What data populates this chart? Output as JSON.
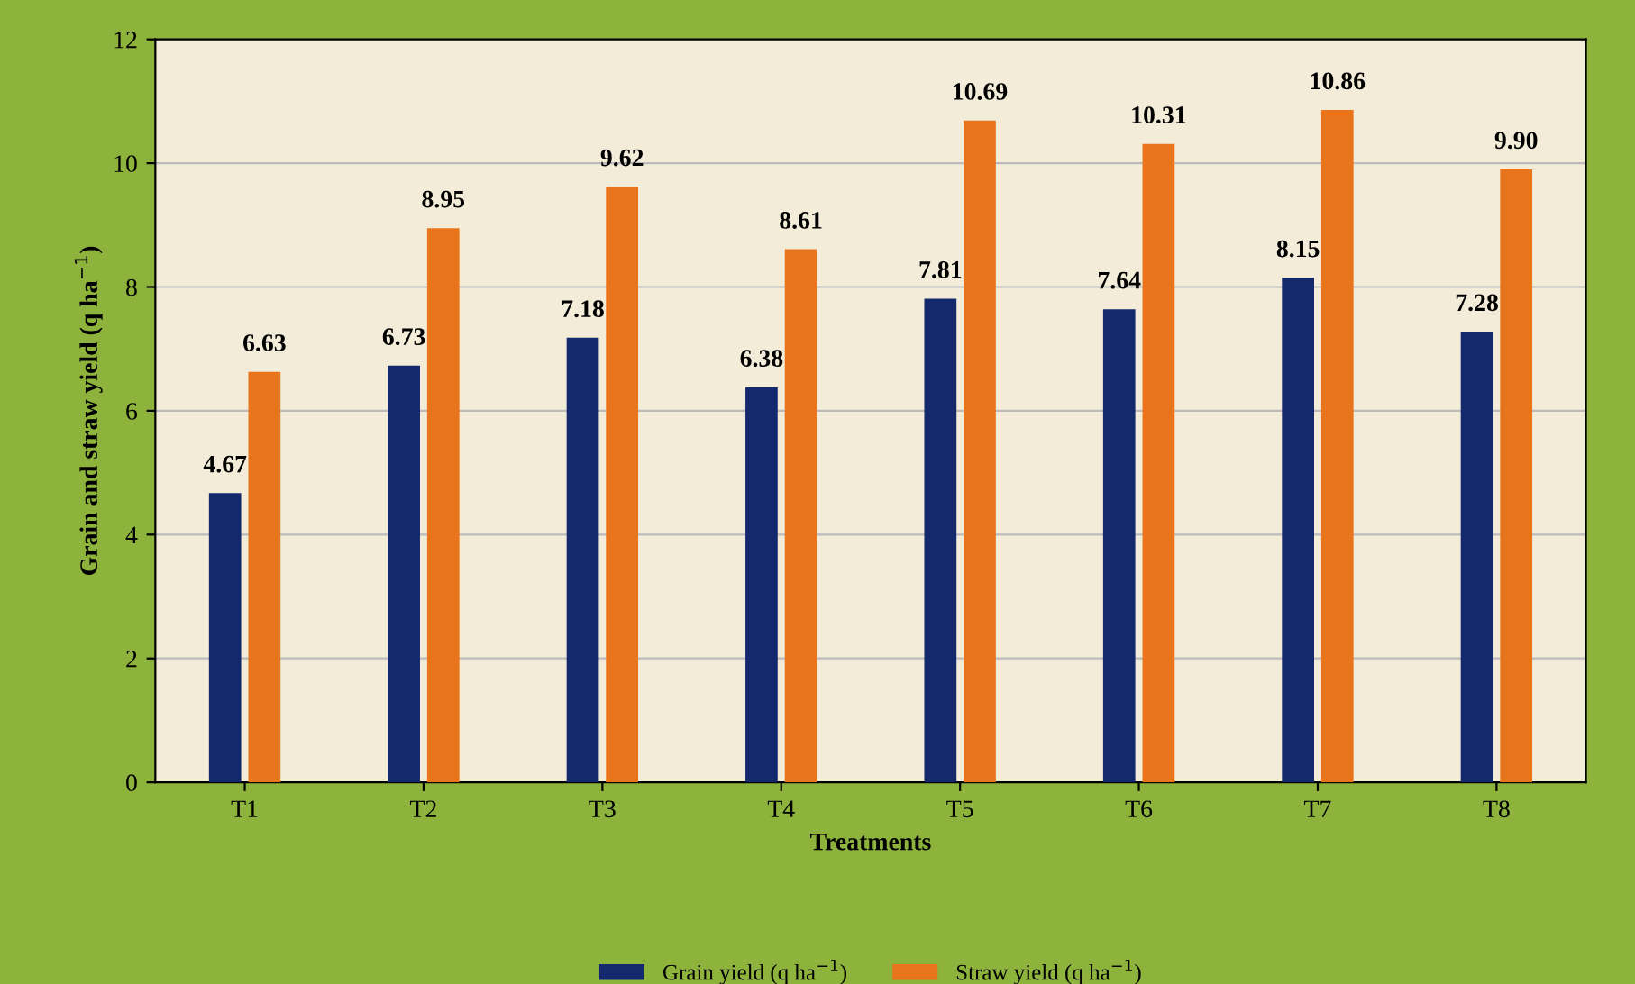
{
  "chart_data": {
    "type": "bar",
    "xlabel": "Treatments",
    "ylabel": "Grain and straw yield (q ha$^{−1}$)",
    "categories": [
      "T1",
      "T2",
      "T3",
      "T4",
      "T5",
      "T6",
      "T7",
      "T8"
    ],
    "series": [
      {
        "name": "Grain yield (q ha$^{−1}$)",
        "color": "#14286e",
        "values": [
          4.67,
          6.73,
          7.18,
          6.38,
          7.81,
          7.64,
          8.15,
          7.28
        ],
        "value_labels": [
          "4.67",
          "6.73",
          "7.18",
          "6.38",
          "7.81",
          "7.64",
          "8.15",
          "7.28"
        ]
      },
      {
        "name": "Straw yield (q ha$^{−1}$)",
        "color": "#e8741c",
        "values": [
          6.63,
          8.95,
          9.62,
          8.61,
          10.69,
          10.31,
          10.86,
          9.9
        ],
        "value_labels": [
          "6.63",
          "8.95",
          "9.62",
          "8.61",
          "10.69",
          "10.31",
          "10.86",
          "9.90"
        ]
      }
    ],
    "ylim": [
      0,
      12
    ],
    "yticks": [
      0,
      2,
      4,
      6,
      8,
      10,
      12
    ],
    "grid": "y",
    "legend": "bottom"
  }
}
